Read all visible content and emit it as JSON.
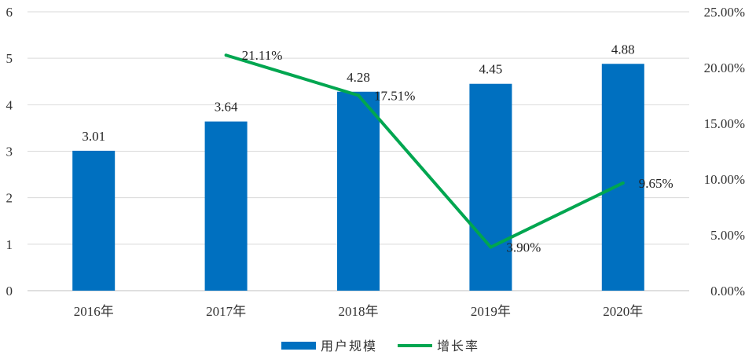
{
  "chart_data": {
    "type": "bar+line",
    "categories": [
      "2016年",
      "2017年",
      "2018年",
      "2019年",
      "2020年"
    ],
    "series": [
      {
        "name": "用户规模",
        "type": "bar",
        "axis": "left",
        "color": "#0070C0",
        "values": [
          3.01,
          3.64,
          4.28,
          4.45,
          4.88
        ],
        "labels": [
          "3.01",
          "3.64",
          "4.28",
          "4.45",
          "4.88"
        ]
      },
      {
        "name": "增长率",
        "type": "line",
        "axis": "right",
        "color": "#00A650",
        "values": [
          null,
          21.11,
          17.51,
          3.9,
          9.65
        ],
        "labels": [
          "",
          "21.11%",
          "17.51%",
          "3.90%",
          "9.65%"
        ]
      }
    ],
    "y_left": {
      "min": 0,
      "max": 6,
      "ticks": [
        "0",
        "1",
        "2",
        "3",
        "4",
        "5",
        "6"
      ]
    },
    "y_right": {
      "min": 0,
      "max": 25,
      "ticks": [
        "0.00%",
        "5.00%",
        "10.00%",
        "15.00%",
        "20.00%",
        "25.00%"
      ]
    },
    "grid": true,
    "legend_position": "bottom",
    "title": "",
    "xlabel": "",
    "ylabel": ""
  }
}
